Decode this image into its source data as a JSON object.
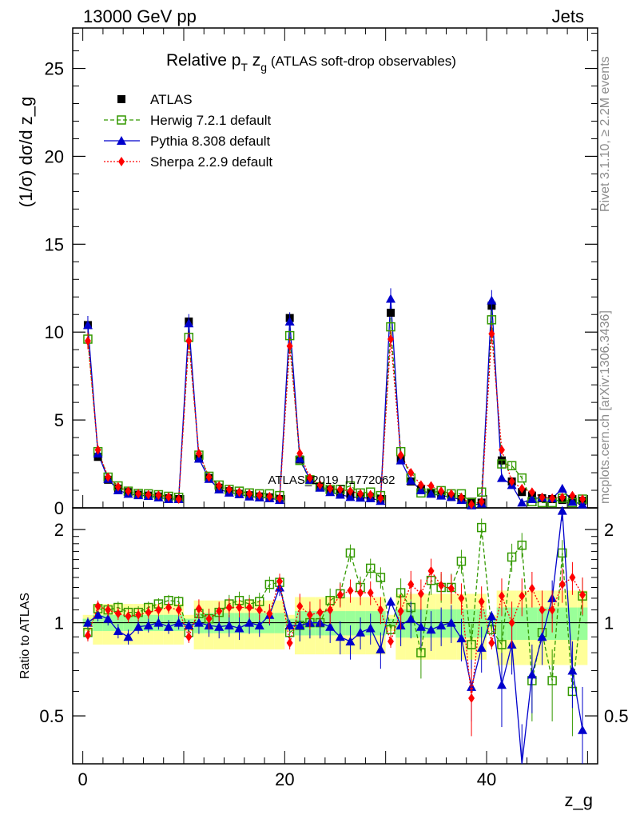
{
  "header": {
    "energy": "13000 GeV pp",
    "category": "Jets"
  },
  "chart_data": [
    {
      "type": "line",
      "title": "Relative pT zg (ATLAS soft-drop observables)",
      "title_main": "Relative p",
      "title_sub_t": "T",
      "title_z": " z",
      "title_sub_g": "g",
      "title_paren": " (ATLAS soft-drop observables)",
      "ylabel": "(1/σ) dσ/d z_g",
      "xlabel": "z_g",
      "xlim": [
        -1,
        51
      ],
      "ylim": [
        0,
        27.3
      ],
      "yticks": [
        0,
        5,
        10,
        15,
        20,
        25
      ],
      "xticks": [
        0,
        20,
        40
      ],
      "watermark": "ATLAS_2019_I1772062",
      "x": [
        0.5,
        1.5,
        2.5,
        3.5,
        4.5,
        5.5,
        6.5,
        7.5,
        8.5,
        9.5,
        10.5,
        11.5,
        12.5,
        13.5,
        14.5,
        15.5,
        16.5,
        17.5,
        18.5,
        19.5,
        20.5,
        21.5,
        22.5,
        23.5,
        24.5,
        25.5,
        26.5,
        27.5,
        28.5,
        29.5,
        30.5,
        31.5,
        32.5,
        33.5,
        34.5,
        35.5,
        36.5,
        37.5,
        38.5,
        39.5,
        40.5,
        41.5,
        42.5,
        43.5,
        44.5,
        45.5,
        46.5,
        47.5,
        48.5,
        49.5
      ],
      "series": [
        {
          "name": "ATLAS",
          "color": "#000000",
          "marker": "square-filled",
          "values": [
            10.4,
            2.9,
            1.6,
            1.1,
            0.9,
            0.75,
            0.7,
            0.65,
            0.55,
            0.5,
            10.6,
            2.8,
            1.7,
            1.15,
            0.95,
            0.8,
            0.72,
            0.65,
            0.6,
            0.5,
            10.8,
            2.75,
            1.6,
            1.2,
            1.0,
            0.85,
            0.75,
            0.65,
            0.6,
            0.5,
            11.1,
            2.75,
            1.5,
            1.05,
            0.85,
            0.72,
            0.62,
            0.5,
            0.35,
            0.3,
            11.5,
            2.7,
            1.5,
            0.9,
            0.7,
            0.55,
            0.5,
            0.45,
            0.5,
            0.4
          ]
        },
        {
          "name": "Herwig 7.2.1 default",
          "color": "#339900",
          "marker": "square-open",
          "values": [
            9.6,
            3.2,
            1.75,
            1.25,
            0.95,
            0.82,
            0.8,
            0.75,
            0.66,
            0.6,
            9.7,
            3.0,
            1.8,
            1.3,
            1.05,
            0.95,
            0.85,
            0.8,
            0.8,
            0.7,
            9.8,
            2.7,
            1.6,
            1.2,
            1.05,
            1.05,
            1.25,
            0.85,
            0.9,
            0.7,
            10.3,
            3.2,
            1.7,
            0.85,
            0.85,
            0.98,
            0.8,
            0.8,
            0.3,
            0.9,
            10.7,
            2.5,
            2.4,
            1.7,
            0.35,
            0.3,
            0.3,
            0.55,
            0.3,
            0.5
          ]
        },
        {
          "name": "Pythia 8.308 default",
          "color": "#0000cc",
          "marker": "triangle-filled",
          "values": [
            10.4,
            3.1,
            1.65,
            1.0,
            0.8,
            0.72,
            0.68,
            0.6,
            0.5,
            0.5,
            10.5,
            2.8,
            1.65,
            1.05,
            0.87,
            0.78,
            0.65,
            0.6,
            0.55,
            0.45,
            10.6,
            2.8,
            1.6,
            1.15,
            0.9,
            0.75,
            0.62,
            0.58,
            0.55,
            0.4,
            11.9,
            2.7,
            1.55,
            1.0,
            0.8,
            0.7,
            0.62,
            0.45,
            0.15,
            0.25,
            11.8,
            1.7,
            1.3,
            0.3,
            0.5,
            0.6,
            0.55,
            1.1,
            0.35,
            0.2
          ]
        },
        {
          "name": "Sherpa 2.2.9 default",
          "color": "#ff0000",
          "marker": "diamond-filled",
          "values": [
            9.5,
            3.3,
            1.75,
            1.2,
            0.95,
            0.8,
            0.75,
            0.72,
            0.62,
            0.5,
            9.5,
            3.1,
            1.75,
            1.25,
            1.05,
            0.9,
            0.8,
            0.72,
            0.65,
            0.55,
            9.2,
            3.1,
            1.7,
            1.3,
            1.1,
            1.05,
            0.95,
            0.8,
            0.75,
            0.55,
            9.6,
            3.0,
            2.0,
            1.3,
            1.25,
            0.95,
            0.8,
            0.6,
            0.2,
            0.35,
            9.9,
            3.3,
            1.5,
            1.1,
            0.9,
            0.6,
            0.55,
            0.6,
            0.7,
            0.5
          ]
        }
      ]
    },
    {
      "type": "line",
      "ylabel": "Ratio to ATLAS",
      "ylim": [
        0.35,
        2.35
      ],
      "yticks": [
        0.5,
        1,
        2
      ],
      "ytick_labels": [
        "0.5",
        "1",
        "2"
      ],
      "band_colors": {
        "inner": "#99ff99",
        "outer": "#ffff99"
      },
      "series": [
        {
          "name": "Herwig 7.2.1 default",
          "color": "#339900",
          "values": [
            0.93,
            1.11,
            1.1,
            1.12,
            1.08,
            1.08,
            1.12,
            1.15,
            1.18,
            1.17,
            0.93,
            1.07,
            1.03,
            1.08,
            1.15,
            1.18,
            1.15,
            1.17,
            1.33,
            1.35,
            0.93,
            0.98,
            1.0,
            1.0,
            1.18,
            1.24,
            1.68,
            1.3,
            1.5,
            1.4,
            0.95,
            1.25,
            1.12,
            0.8,
            1.37,
            1.3,
            1.3,
            1.58,
            0.85,
            2.03,
            0.95,
            0.85,
            1.63,
            1.78,
            0.65,
            0.93,
            0.65,
            1.68,
            0.6,
            1.22
          ]
        },
        {
          "name": "Pythia 8.308 default",
          "color": "#0000cc",
          "values": [
            1.0,
            1.06,
            1.03,
            0.94,
            0.9,
            0.97,
            0.98,
            1.0,
            0.97,
            1.0,
            0.98,
            1.0,
            0.98,
            0.97,
            0.98,
            0.96,
            1.0,
            0.98,
            1.06,
            1.3,
            0.98,
            0.98,
            1.0,
            1.0,
            0.97,
            0.9,
            0.87,
            0.93,
            0.96,
            0.82,
            1.17,
            0.98,
            1.03,
            0.97,
            0.95,
            0.98,
            1.0,
            0.89,
            0.62,
            0.83,
            1.05,
            0.63,
            0.85,
            0.3,
            0.68,
            0.9,
            1.2,
            2.3,
            0.7,
            0.45
          ]
        },
        {
          "name": "Sherpa 2.2.9 default",
          "color": "#ff0000",
          "values": [
            0.91,
            1.13,
            1.1,
            1.07,
            1.05,
            1.06,
            1.08,
            1.1,
            1.12,
            1.1,
            0.9,
            1.11,
            1.03,
            1.09,
            1.12,
            1.12,
            1.12,
            1.1,
            1.07,
            1.36,
            0.86,
            1.13,
            1.06,
            1.08,
            1.1,
            1.23,
            1.27,
            1.25,
            1.25,
            1.1,
            0.87,
            1.09,
            1.33,
            1.24,
            1.47,
            1.32,
            1.29,
            1.2,
            0.57,
            1.17,
            0.86,
            1.22,
            1.0,
            1.22,
            1.29,
            1.1,
            1.1,
            1.33,
            1.4,
            1.23
          ]
        }
      ]
    }
  ],
  "side_text": {
    "rivet": "Rivet 3.1.10, ≥ 2.2M events",
    "mcplots": "mcplots.cern.ch [arXiv:1306.3436]"
  }
}
